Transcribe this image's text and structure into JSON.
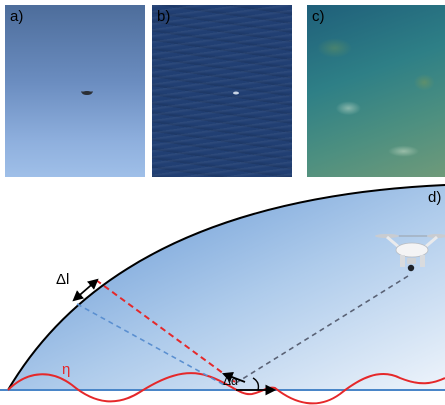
{
  "panels": [
    {
      "label": "a)"
    },
    {
      "label": "b)"
    },
    {
      "label": "c)"
    }
  ],
  "diagram": {
    "panel_label": "d)",
    "delta_l": "Δl",
    "eta": "η",
    "delta_alpha": "Δα"
  },
  "colors": {
    "dome_edge": "#000000",
    "wave": "#e5282a",
    "surface_line": "#4a86c8",
    "red_ray": "#e5282a",
    "blue_ray": "#5a8fd0",
    "drone_ray": "#5a6275"
  }
}
